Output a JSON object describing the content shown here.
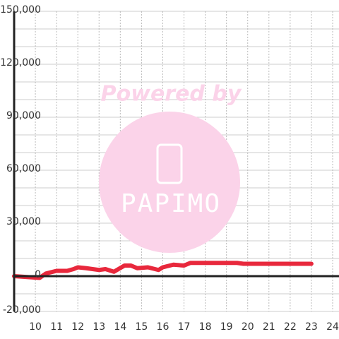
{
  "chart_data": {
    "type": "line",
    "watermark": {
      "line1": "Powered by",
      "logo": "PAPIMO"
    },
    "xlim": [
      9,
      24.3
    ],
    "xticks": [
      10,
      11,
      12,
      13,
      14,
      15,
      16,
      17,
      18,
      19,
      20,
      21,
      22,
      23,
      24
    ],
    "ylim": [
      -20000,
      150000
    ],
    "yticks": [
      {
        "value": -20000,
        "label": "-20,000"
      },
      {
        "value": 0,
        "label": "0"
      },
      {
        "value": 30000,
        "label": "30,000"
      },
      {
        "value": 60000,
        "label": "60,000"
      },
      {
        "value": 90000,
        "label": "90,000"
      },
      {
        "value": 120000,
        "label": "120,000"
      },
      {
        "value": 150000,
        "label": "150,000"
      }
    ],
    "grid_yticks": [
      -10000,
      10000,
      20000,
      40000,
      50000,
      70000,
      80000,
      100000,
      110000,
      130000,
      140000
    ],
    "grid": true,
    "series": [
      {
        "color": "#e8283c",
        "x": [
          9,
          10.2,
          10.5,
          11,
          11.5,
          11.8,
          12,
          12.4,
          13,
          13.3,
          13.7,
          14.2,
          14.5,
          14.8,
          15.3,
          15.8,
          16,
          16.5,
          17,
          17.3,
          17.6,
          19.5,
          19.8,
          23
        ],
        "values": [
          0,
          -1000,
          1500,
          3000,
          3000,
          4000,
          5000,
          4500,
          3500,
          4000,
          2500,
          6000,
          6000,
          4500,
          5000,
          3500,
          5000,
          6500,
          6000,
          7500,
          7500,
          7500,
          7000,
          7000
        ]
      }
    ]
  }
}
